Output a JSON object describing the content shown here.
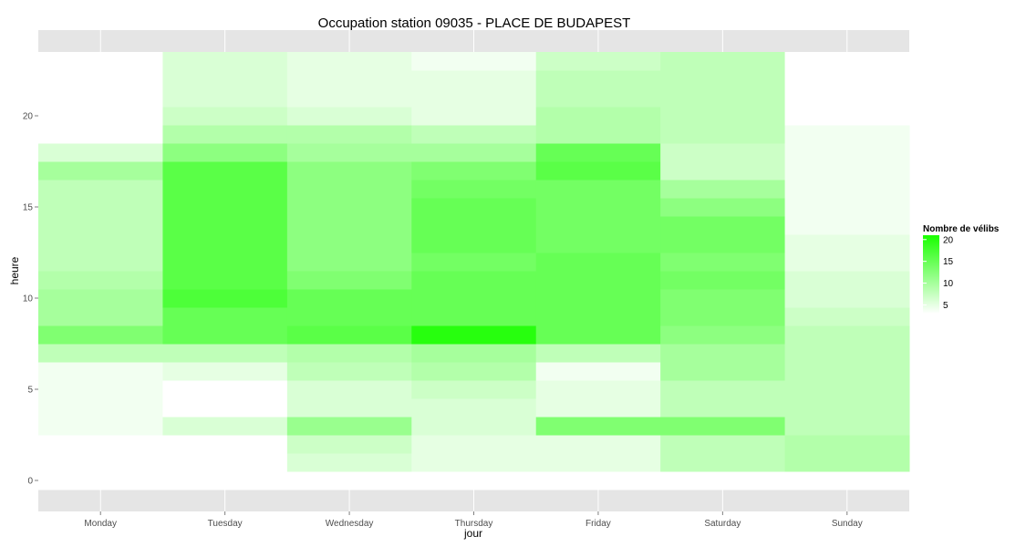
{
  "chart_data": {
    "type": "heatmap",
    "title": "Occupation station 09035 - PLACE DE BUDAPEST",
    "xlabel": "jour",
    "ylabel": "heure",
    "x_categories": [
      "Monday",
      "Tuesday",
      "Wednesday",
      "Thursday",
      "Friday",
      "Saturday",
      "Sunday"
    ],
    "y_hours": [
      0,
      1,
      2,
      3,
      4,
      5,
      6,
      7,
      8,
      9,
      10,
      11,
      12,
      13,
      14,
      15,
      16,
      17,
      18,
      19,
      20,
      21,
      22,
      23
    ],
    "y_ticks": [
      0,
      5,
      10,
      15,
      20
    ],
    "ylim": [
      -0.5,
      23.5
    ],
    "grid": true,
    "legend": {
      "title": "Nombre de vélibs",
      "position": "right",
      "labels": [
        20,
        15,
        10,
        5
      ],
      "min": 3,
      "max": 21,
      "low_color": "#ffffff",
      "high_color": "#1aff00"
    },
    "colors": {
      "panel_background": "#e5e5e5",
      "grid_line": "#ffffff"
    },
    "values": [
      [
        3,
        3,
        3,
        3,
        3,
        3,
        3
      ],
      [
        3,
        3,
        6,
        5,
        5,
        8,
        9
      ],
      [
        3,
        3,
        7,
        5,
        5,
        8,
        9
      ],
      [
        4,
        6,
        11,
        6,
        13,
        13,
        8
      ],
      [
        4,
        3,
        6,
        6,
        5,
        8,
        8
      ],
      [
        4,
        3,
        6,
        7,
        5,
        8,
        8
      ],
      [
        4,
        5,
        8,
        9,
        4,
        10,
        8
      ],
      [
        8,
        8,
        9,
        10,
        8,
        10,
        8
      ],
      [
        13,
        15,
        16,
        20,
        15,
        12,
        8
      ],
      [
        10,
        15,
        15,
        15,
        15,
        13,
        7
      ],
      [
        10,
        17,
        15,
        15,
        15,
        13,
        6
      ],
      [
        9,
        16,
        13,
        15,
        15,
        14,
        6
      ],
      [
        8,
        16,
        12,
        14,
        15,
        13,
        5
      ],
      [
        8,
        16,
        12,
        15,
        14,
        14,
        5
      ],
      [
        8,
        16,
        12,
        15,
        14,
        14,
        4
      ],
      [
        8,
        16,
        12,
        15,
        14,
        12,
        4
      ],
      [
        8,
        16,
        12,
        14,
        14,
        10,
        4
      ],
      [
        10,
        16,
        12,
        13,
        16,
        7,
        4
      ],
      [
        6,
        12,
        10,
        10,
        15,
        7,
        4
      ],
      [
        3,
        9,
        9,
        8,
        9,
        8,
        4
      ],
      [
        3,
        7,
        6,
        5,
        9,
        8,
        3
      ],
      [
        3,
        6,
        5,
        5,
        8,
        8,
        3
      ],
      [
        3,
        6,
        5,
        5,
        8,
        8,
        3
      ],
      [
        3,
        6,
        5,
        4,
        7,
        8,
        3
      ]
    ]
  }
}
